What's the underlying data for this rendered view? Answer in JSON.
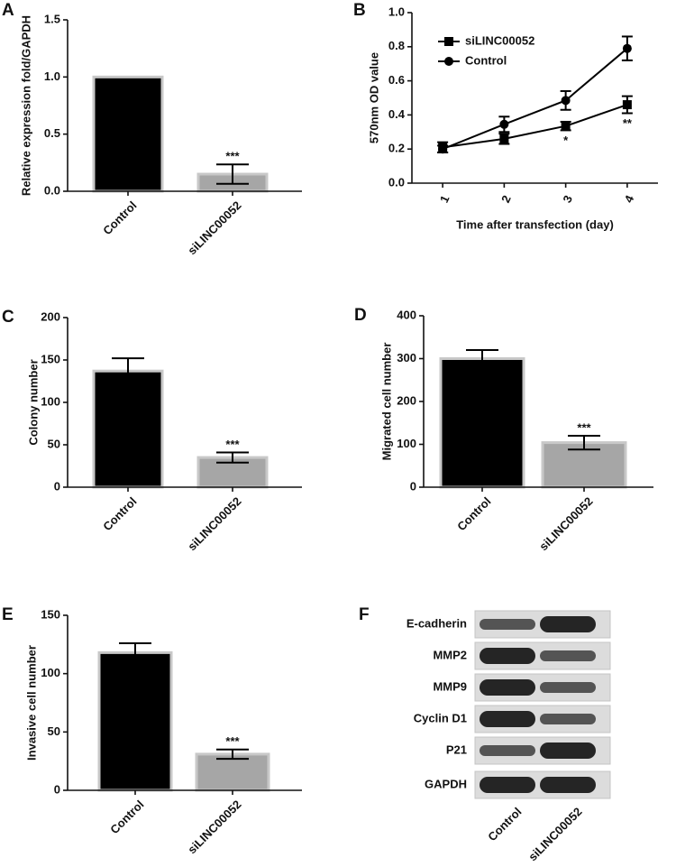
{
  "chart_data": [
    {
      "type": "bar",
      "panel": "A",
      "ylabel": "Relative expression fold/GAPDH",
      "categories": [
        "Control",
        "siLINC00052"
      ],
      "values": [
        1.0,
        0.15
      ],
      "errors": [
        null,
        0.085
      ],
      "colors": [
        "#000000",
        "#a6a6a6"
      ],
      "significance": [
        null,
        "***"
      ],
      "ylim": [
        0,
        1.5
      ],
      "yticks": [
        {
          "value": 0,
          "label": "0.0"
        },
        0.5,
        {
          "value": 1,
          "label": "1.0"
        },
        1.5
      ]
    },
    {
      "type": "line",
      "panel": "B",
      "ylabel": "570nm OD value",
      "xlabel": "Time after transfection (day)",
      "x": [
        1,
        2,
        3,
        4
      ],
      "xlim": [
        0.5,
        4.5
      ],
      "xticks": [
        1,
        2,
        3,
        4
      ],
      "series": [
        {
          "name": "siLINC00052",
          "color": "#000000",
          "marker": "square",
          "values": [
            0.21,
            0.26,
            0.335,
            0.46
          ],
          "errors": [
            0.03,
            0.03,
            0.025,
            0.05
          ]
        },
        {
          "name": "Control",
          "color": "#000000",
          "marker": "circle",
          "values": [
            0.2,
            0.345,
            0.485,
            0.79
          ],
          "errors": [
            0.02,
            0.045,
            0.055,
            0.07
          ]
        }
      ],
      "significance": [
        null,
        null,
        "*",
        "**"
      ],
      "ylim": [
        0,
        1.0
      ],
      "yticks": [
        {
          "value": 0,
          "label": "0.0"
        },
        0.2,
        0.4,
        0.6,
        0.8,
        {
          "value": 1,
          "label": "1.0"
        }
      ]
    },
    {
      "type": "bar",
      "panel": "C",
      "ylabel": "Colony number",
      "categories": [
        "Control",
        "siLINC00052"
      ],
      "values": [
        137,
        35
      ],
      "errors": [
        15,
        6
      ],
      "colors": [
        "#000000",
        "#a6a6a6"
      ],
      "significance": [
        null,
        "***"
      ],
      "ylim": [
        0,
        200
      ],
      "yticks": [
        0,
        50,
        100,
        150,
        200
      ]
    },
    {
      "type": "bar",
      "panel": "D",
      "ylabel": "Migrated cell number",
      "categories": [
        "Control",
        "siLINC00052"
      ],
      "values": [
        300,
        104
      ],
      "errors": [
        20,
        16
      ],
      "colors": [
        "#000000",
        "#a6a6a6"
      ],
      "significance": [
        null,
        "***"
      ],
      "ylim": [
        0,
        400
      ],
      "yticks": [
        0,
        100,
        200,
        300,
        400
      ]
    },
    {
      "type": "bar",
      "panel": "E",
      "ylabel": "Invasive cell number",
      "categories": [
        "Control",
        "siLINC00052"
      ],
      "values": [
        118,
        31
      ],
      "errors": [
        8,
        4
      ],
      "colors": [
        "#000000",
        "#a6a6a6"
      ],
      "significance": [
        null,
        "***"
      ],
      "ylim": [
        0,
        150
      ],
      "yticks": [
        0,
        50,
        100,
        150
      ]
    },
    {
      "type": "blot",
      "panel": "F",
      "rows": [
        "E-cadherin",
        "MMP2",
        "MMP9",
        "Cyclin D1",
        "P21",
        "GAPDH"
      ],
      "lanes": [
        "Control",
        "siLINC00052"
      ],
      "values": [
        [
          0.5,
          1
        ],
        [
          1,
          0.5
        ],
        [
          1,
          0.5
        ],
        [
          1,
          0.5
        ],
        [
          0.5,
          1
        ],
        [
          1,
          1
        ]
      ]
    }
  ]
}
